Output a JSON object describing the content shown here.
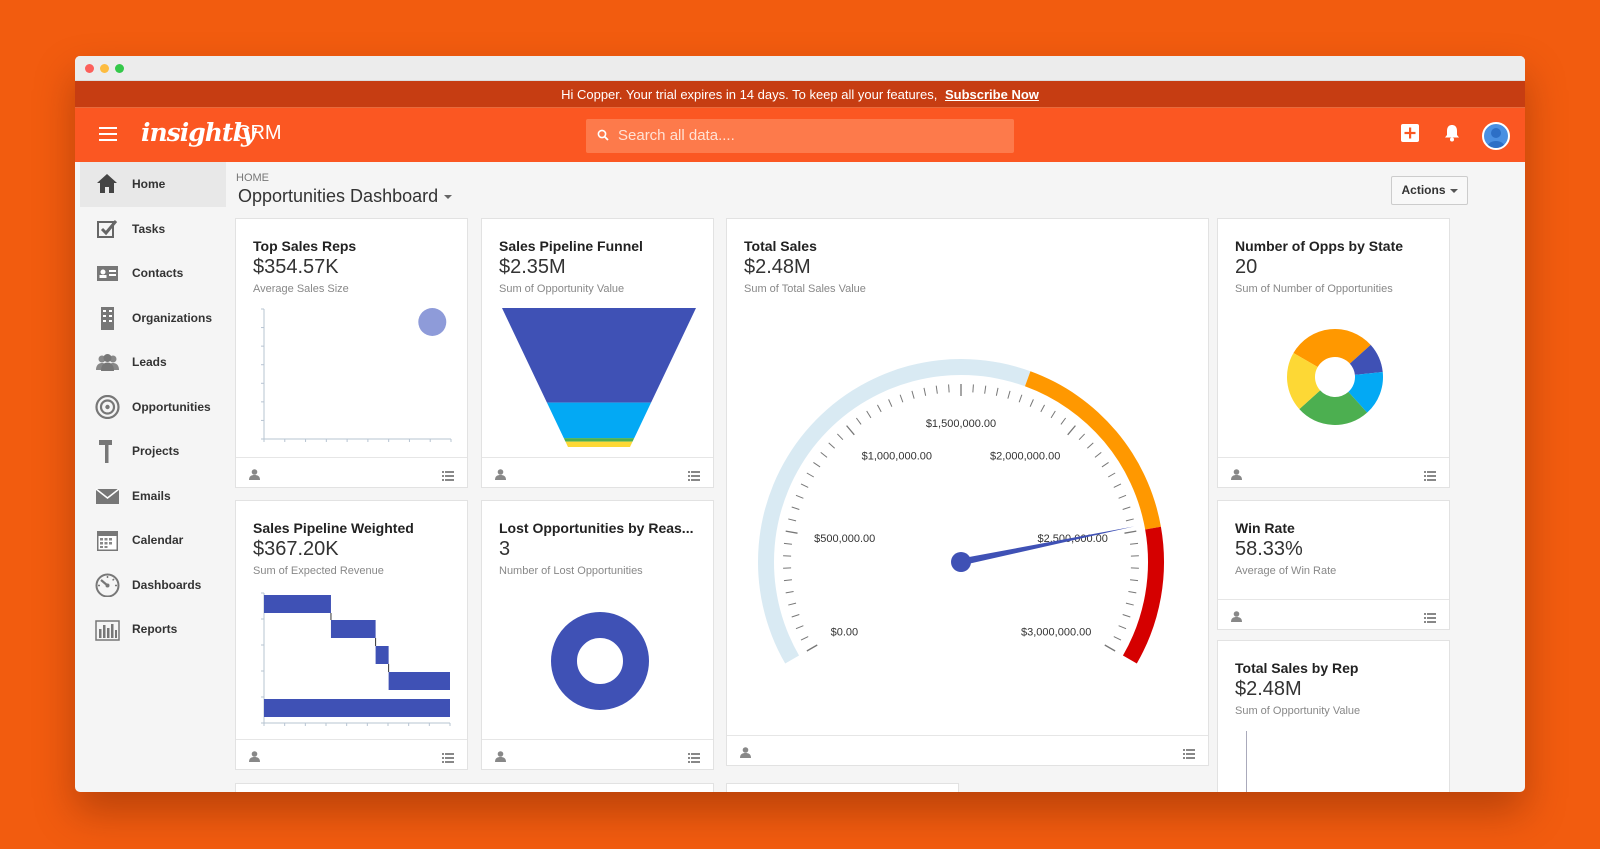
{
  "banner": {
    "message": "Hi Copper. Your trial expires in 14 days. To keep all your features,",
    "link": "Subscribe Now"
  },
  "header": {
    "logo": "insightly",
    "product": "CRM",
    "search_placeholder": "Search all data...."
  },
  "sidebar": {
    "items": [
      {
        "label": "Home",
        "icon": "home-icon"
      },
      {
        "label": "Tasks",
        "icon": "tasks-icon"
      },
      {
        "label": "Contacts",
        "icon": "contacts-icon"
      },
      {
        "label": "Organizations",
        "icon": "building-icon"
      },
      {
        "label": "Leads",
        "icon": "leads-icon"
      },
      {
        "label": "Opportunities",
        "icon": "target-icon"
      },
      {
        "label": "Projects",
        "icon": "hammer-icon"
      },
      {
        "label": "Emails",
        "icon": "envelope-icon"
      },
      {
        "label": "Calendar",
        "icon": "calendar-icon"
      },
      {
        "label": "Dashboards",
        "icon": "gauge-icon"
      },
      {
        "label": "Reports",
        "icon": "bar-chart-icon"
      }
    ]
  },
  "page": {
    "breadcrumb": "HOME",
    "title": "Opportunities Dashboard",
    "actions_label": "Actions"
  },
  "cards": {
    "top_sales_reps": {
      "title": "Top Sales Reps",
      "value": "$354.57K",
      "subtitle": "Average Sales Size"
    },
    "funnel": {
      "title": "Sales Pipeline Funnel",
      "value": "$2.35M",
      "subtitle": "Sum of Opportunity Value"
    },
    "total_sales": {
      "title": "Total Sales",
      "value": "$2.48M",
      "subtitle": "Sum of Total Sales Value"
    },
    "opps_by_state": {
      "title": "Number of Opps by State",
      "value": "20",
      "subtitle": "Sum of Number of Opportunities"
    },
    "weighted": {
      "title": "Sales Pipeline Weighted",
      "value": "$367.20K",
      "subtitle": "Sum of Expected Revenue"
    },
    "lost": {
      "title": "Lost Opportunities by Reas...",
      "value": "3",
      "subtitle": "Number of Lost Opportunities"
    },
    "win_rate": {
      "title": "Win Rate",
      "value": "58.33%",
      "subtitle": "Average of Win Rate"
    },
    "sales_by_rep": {
      "title": "Total Sales by Rep",
      "value": "$2.48M",
      "subtitle": "Sum of Opportunity Value"
    }
  },
  "colors": {
    "brand": "#fb5722",
    "series_blue": "#3f51b5",
    "light_blue": "#03a9f4",
    "green": "#4caf50",
    "yellow": "#fdd835",
    "orange": "#ff9800",
    "red": "#d50000",
    "gauge_track": "#d9eaf3"
  },
  "chart_data": [
    {
      "type": "scatter",
      "name_ref": "top_sales_reps",
      "points": [
        {
          "x": 0.9,
          "y": 0.9
        }
      ]
    },
    {
      "type": "bar",
      "subtype": "funnel",
      "name_ref": "funnel",
      "values": [
        1.6,
        0.6,
        0.06,
        0.09
      ]
    },
    {
      "type": "gauge",
      "name_ref": "total_sales",
      "value": 2480000,
      "min": 0,
      "max": 3000000,
      "tick_labels": [
        "$0.00",
        "$500,000.00",
        "$1,000,000.00",
        "$1,500,000.00",
        "$2,000,000.00",
        "$2,500,000.00",
        "$3,000,000.00"
      ],
      "bands": [
        {
          "from": 0,
          "to": 1750000,
          "color": "#d9eaf3"
        },
        {
          "from": 1750000,
          "to": 2500000,
          "color": "#ff9800"
        },
        {
          "from": 2500000,
          "to": 3000000,
          "color": "#d50000"
        }
      ]
    },
    {
      "type": "pie",
      "subtype": "donut",
      "name_ref": "opps_by_state",
      "values": [
        6,
        2,
        3,
        5,
        4
      ],
      "colors": [
        "#ff9800",
        "#3f51b5",
        "#03a9f4",
        "#4caf50",
        "#fdd835"
      ]
    },
    {
      "type": "bar",
      "subtype": "waterfall",
      "name_ref": "weighted",
      "steps": [
        {
          "start": 0,
          "end": 0.36
        },
        {
          "start": 0.36,
          "end": 0.6
        },
        {
          "start": 0.6,
          "end": 0.67
        },
        {
          "start": 0.67,
          "end": 1.0
        },
        {
          "start": 0,
          "end": 1.0
        }
      ]
    },
    {
      "type": "pie",
      "subtype": "donut",
      "name_ref": "lost",
      "values": [
        3
      ],
      "colors": [
        "#3f51b5"
      ]
    }
  ]
}
